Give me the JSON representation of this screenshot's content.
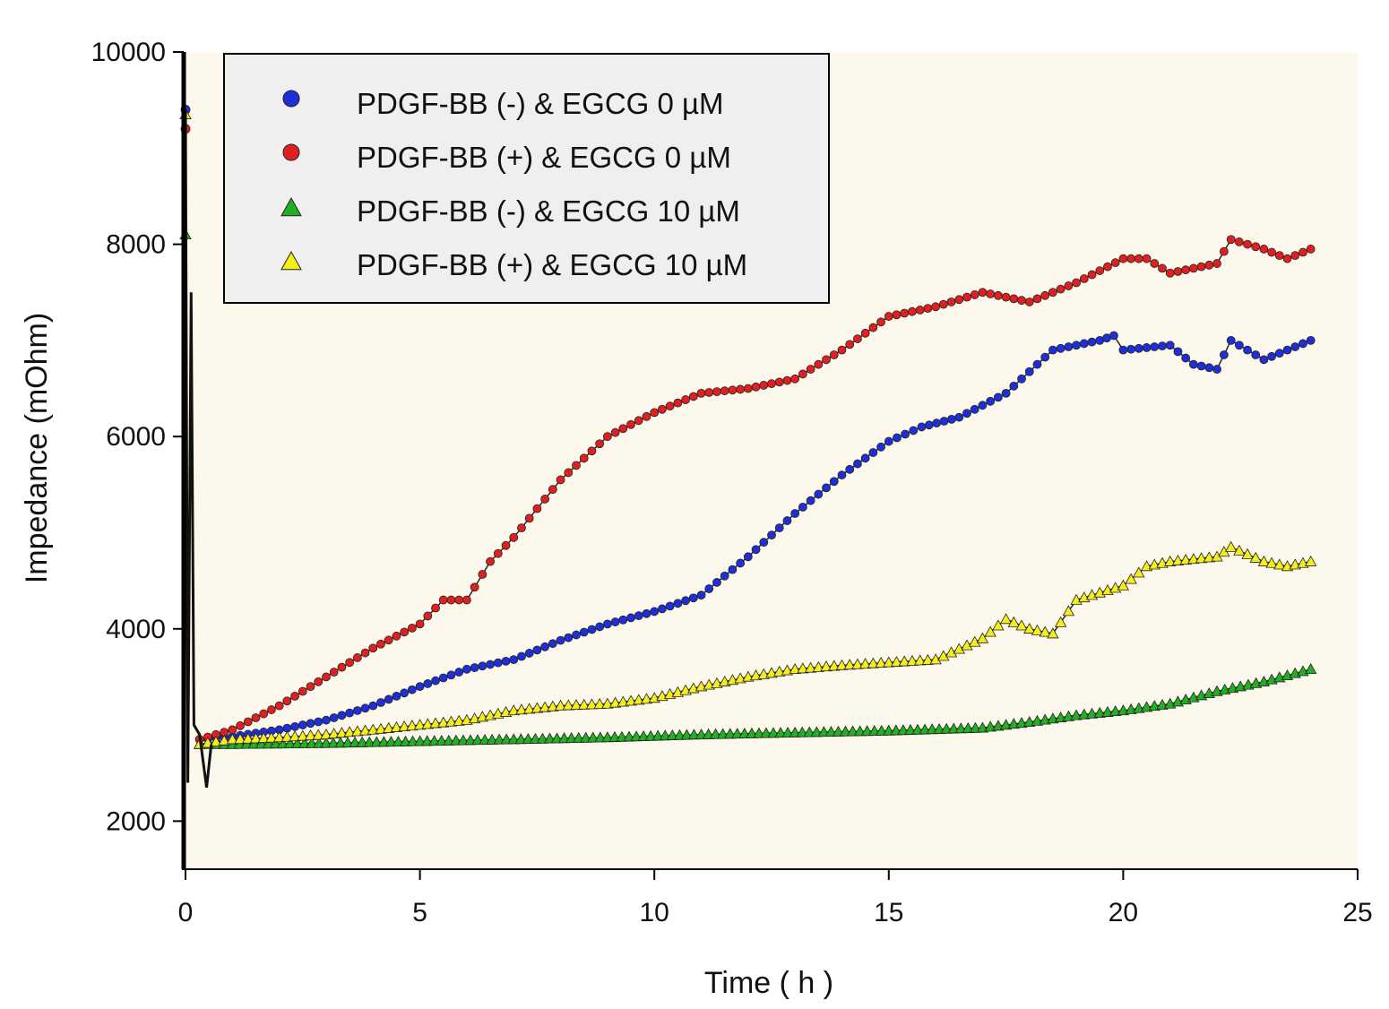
{
  "chart_data": {
    "type": "scatter",
    "title": "",
    "xlabel": "Time  ( h )",
    "ylabel": "Impedance (mOhm)",
    "xlim": [
      0,
      25
    ],
    "ylim": [
      1500,
      10000
    ],
    "xticks": [
      0,
      5,
      10,
      15,
      20,
      25
    ],
    "yticks": [
      2000,
      4000,
      6000,
      8000,
      10000
    ],
    "legend_position": "top-left",
    "plot_background": "#fdf8ec",
    "series": [
      {
        "name": "PDGF-BB (-) & EGCG 0 µM",
        "marker": "circle",
        "color": "#1f2fd8",
        "points": [
          [
            0.0,
            9400
          ],
          [
            0.3,
            2850
          ],
          [
            1,
            2880
          ],
          [
            2,
            2950
          ],
          [
            3,
            3050
          ],
          [
            4,
            3200
          ],
          [
            5,
            3400
          ],
          [
            6,
            3580
          ],
          [
            7,
            3680
          ],
          [
            8,
            3880
          ],
          [
            9,
            4050
          ],
          [
            10,
            4180
          ],
          [
            11,
            4350
          ],
          [
            12,
            4750
          ],
          [
            13,
            5200
          ],
          [
            14,
            5600
          ],
          [
            15,
            5950
          ],
          [
            15.7,
            6100
          ],
          [
            16.5,
            6200
          ],
          [
            17.5,
            6450
          ],
          [
            18.5,
            6900
          ],
          [
            19.5,
            7000
          ],
          [
            19.8,
            7050
          ],
          [
            20,
            6900
          ],
          [
            21,
            6950
          ],
          [
            21.5,
            6750
          ],
          [
            22,
            6700
          ],
          [
            22.3,
            7000
          ],
          [
            23,
            6800
          ],
          [
            24,
            7000
          ]
        ]
      },
      {
        "name": "PDGF-BB (+) & EGCG 0 µM",
        "marker": "circle",
        "color": "#e02020",
        "points": [
          [
            0.0,
            9200
          ],
          [
            0.3,
            2850
          ],
          [
            1,
            2950
          ],
          [
            2,
            3200
          ],
          [
            3,
            3500
          ],
          [
            4,
            3800
          ],
          [
            5,
            4050
          ],
          [
            5.5,
            4300
          ],
          [
            6,
            4300
          ],
          [
            6.5,
            4700
          ],
          [
            7,
            4950
          ],
          [
            8,
            5550
          ],
          [
            9,
            6000
          ],
          [
            10,
            6250
          ],
          [
            11,
            6450
          ],
          [
            12,
            6500
          ],
          [
            13,
            6600
          ],
          [
            14,
            6900
          ],
          [
            15,
            7250
          ],
          [
            16,
            7350
          ],
          [
            17,
            7500
          ],
          [
            17.5,
            7450
          ],
          [
            18,
            7400
          ],
          [
            18.5,
            7500
          ],
          [
            19,
            7600
          ],
          [
            20,
            7850
          ],
          [
            20.5,
            7850
          ],
          [
            21,
            7700
          ],
          [
            22,
            7800
          ],
          [
            22.3,
            8050
          ],
          [
            23,
            7950
          ],
          [
            23.5,
            7850
          ],
          [
            24,
            7950
          ]
        ]
      },
      {
        "name": "PDGF-BB (-) & EGCG 10 µM",
        "marker": "triangle",
        "color": "#22b022",
        "points": [
          [
            0.0,
            8100
          ],
          [
            0.3,
            2800
          ],
          [
            1,
            2800
          ],
          [
            3,
            2810
          ],
          [
            5,
            2830
          ],
          [
            7,
            2850
          ],
          [
            9,
            2870
          ],
          [
            11,
            2900
          ],
          [
            13,
            2920
          ],
          [
            15,
            2940
          ],
          [
            17,
            2970
          ],
          [
            18,
            3030
          ],
          [
            19,
            3100
          ],
          [
            20,
            3150
          ],
          [
            21,
            3220
          ],
          [
            22,
            3350
          ],
          [
            23,
            3450
          ],
          [
            24,
            3580
          ]
        ]
      },
      {
        "name": "PDGF-BB (+) & EGCG 10 µM",
        "marker": "triangle",
        "color": "#f5ee1a",
        "points": [
          [
            0.0,
            9350
          ],
          [
            0.3,
            2800
          ],
          [
            1,
            2850
          ],
          [
            2,
            2870
          ],
          [
            3,
            2900
          ],
          [
            4,
            2950
          ],
          [
            5,
            3000
          ],
          [
            6,
            3050
          ],
          [
            7,
            3150
          ],
          [
            8,
            3200
          ],
          [
            9,
            3220
          ],
          [
            10,
            3280
          ],
          [
            11,
            3400
          ],
          [
            12,
            3500
          ],
          [
            13,
            3580
          ],
          [
            14,
            3620
          ],
          [
            15,
            3650
          ],
          [
            16,
            3680
          ],
          [
            17,
            3900
          ],
          [
            17.5,
            4100
          ],
          [
            18,
            4000
          ],
          [
            18.5,
            3950
          ],
          [
            19,
            4300
          ],
          [
            20,
            4450
          ],
          [
            20.5,
            4650
          ],
          [
            21,
            4700
          ],
          [
            22,
            4750
          ],
          [
            22.3,
            4850
          ],
          [
            23,
            4700
          ],
          [
            23.5,
            4650
          ],
          [
            24,
            4700
          ]
        ]
      }
    ]
  }
}
